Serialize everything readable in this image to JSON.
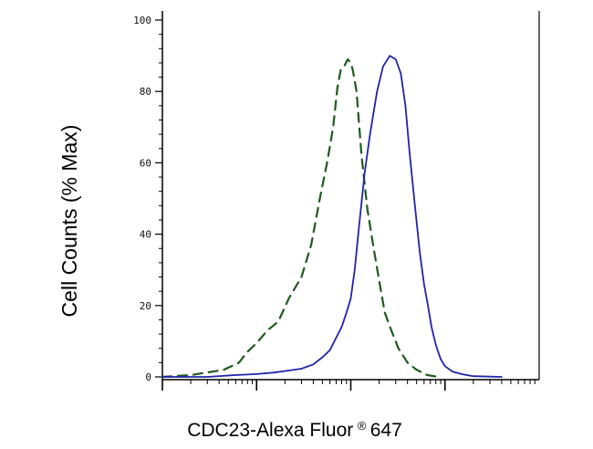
{
  "chart_data": {
    "type": "line",
    "title": "",
    "xlabel": "CDC23-Alexa Fluor",
    "xlabel_superscript": "®",
    "xlabel_suffix": " 647",
    "ylabel": "Cell Counts (% Max)",
    "ylim": [
      0,
      100
    ],
    "xscale": "log",
    "xlim": [
      10,
      100000
    ],
    "y_ticks": [
      "0",
      "20",
      "40",
      "60",
      "80",
      "100"
    ],
    "y_tick_values": [
      0,
      20,
      40,
      60,
      80,
      100
    ],
    "x_ticks_unlabeled": [
      100,
      1000,
      10000
    ],
    "grid": false,
    "legend": "none",
    "series": [
      {
        "style": "dashed",
        "color": "#1e5a1e",
        "x": [
          10,
          20,
          45,
          65,
          80,
          100,
          130,
          170,
          220,
          300,
          380,
          470,
          560,
          650,
          720,
          780,
          850,
          930,
          1000,
          1050,
          1150,
          1300,
          1500,
          1750,
          2000,
          2300,
          2700,
          3200,
          4000,
          5000,
          6500,
          8500
        ],
        "y": [
          0,
          0.5,
          2,
          4,
          7,
          9.5,
          13,
          15.5,
          22,
          28,
          37,
          50,
          60,
          70,
          81,
          86,
          87,
          89,
          88,
          86,
          80,
          62,
          47,
          36,
          27,
          18,
          13,
          8,
          4,
          2,
          0.5,
          0
        ]
      },
      {
        "style": "solid",
        "color": "#2024a8",
        "x": [
          10,
          30,
          60,
          100,
          150,
          220,
          300,
          400,
          500,
          600,
          700,
          800,
          900,
          1000,
          1100,
          1200,
          1400,
          1600,
          1900,
          2200,
          2600,
          3000,
          3400,
          3800,
          4200,
          4800,
          5400,
          6000,
          6600,
          7200,
          8000,
          9000,
          10000,
          12000,
          15000,
          20000,
          40000
        ],
        "y": [
          0,
          0,
          0.5,
          0.8,
          1.2,
          1.8,
          2.3,
          3.5,
          5.5,
          7.5,
          11,
          14,
          18,
          22,
          30,
          40,
          57,
          68,
          80,
          87,
          90,
          89,
          85,
          76,
          63,
          48,
          35,
          26,
          20,
          14,
          9,
          5,
          3,
          1.5,
          0.8,
          0.2,
          0
        ]
      }
    ]
  }
}
